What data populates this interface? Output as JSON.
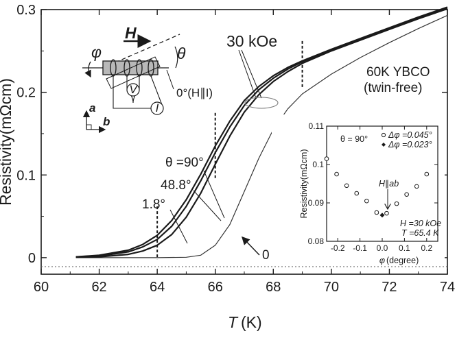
{
  "chart_data": [
    {
      "type": "line",
      "xlabel_symbol": "T",
      "xlabel_unit": "(K)",
      "ylabel": "Resistivity(mΩcm)",
      "xlim": [
        60,
        74
      ],
      "ylim": [
        -0.02,
        0.3
      ],
      "xticks": [
        "60",
        "62",
        "64",
        "66",
        "68",
        "70",
        "72",
        "74"
      ],
      "yticks": [
        "0",
        "0.1",
        "0.2",
        "0.3"
      ],
      "grid": false,
      "sample_label_1": "60K YBCO",
      "sample_label_2": "(twin-free)",
      "field_label_30": "30 kOe",
      "field_label_0": "0 kOe",
      "theta_label": "θ =90°",
      "angle_label_48": "48.8°",
      "angle_label_1": "1.8°",
      "dashed_markers_x": [
        64,
        66,
        69
      ],
      "series": [
        {
          "name": "0 kOe",
          "x": [
            61.2,
            62,
            63,
            64,
            65,
            65.5,
            66,
            66.5,
            67,
            67.5,
            68,
            68.5,
            69,
            70,
            71,
            72,
            73,
            74
          ],
          "y": [
            0,
            0,
            0,
            0,
            0.0005,
            0.003,
            0.015,
            0.04,
            0.08,
            0.12,
            0.155,
            0.18,
            0.198,
            0.222,
            0.242,
            0.26,
            0.277,
            0.293
          ]
        },
        {
          "name": "θ =90°",
          "x": [
            61.2,
            62,
            63,
            63.5,
            64,
            64.5,
            65,
            65.5,
            66,
            66.5,
            67,
            67.5,
            68,
            68.5,
            69,
            70,
            71,
            72,
            73,
            74
          ],
          "y": [
            0.001,
            0.003,
            0.009,
            0.016,
            0.027,
            0.045,
            0.07,
            0.101,
            0.135,
            0.165,
            0.19,
            0.207,
            0.22,
            0.23,
            0.238,
            0.252,
            0.265,
            0.278,
            0.291,
            0.303
          ]
        },
        {
          "name": "48.8°",
          "x": [
            61.2,
            62,
            63,
            63.5,
            64,
            64.5,
            65,
            65.5,
            66,
            66.5,
            67,
            67.5,
            68,
            68.5,
            69,
            70,
            71,
            72,
            73,
            74
          ],
          "y": [
            0.001,
            0.002,
            0.007,
            0.013,
            0.022,
            0.038,
            0.062,
            0.093,
            0.127,
            0.158,
            0.184,
            0.203,
            0.217,
            0.228,
            0.237,
            0.251,
            0.264,
            0.277,
            0.29,
            0.302
          ]
        },
        {
          "name": "1.8°",
          "x": [
            61.2,
            62,
            63,
            63.5,
            64,
            64.5,
            65,
            65.5,
            66,
            66.5,
            67,
            67.5,
            68,
            68.5,
            69,
            70,
            71,
            72,
            73,
            74
          ],
          "y": [
            0.0005,
            0.001,
            0.004,
            0.008,
            0.015,
            0.028,
            0.049,
            0.078,
            0.113,
            0.147,
            0.176,
            0.197,
            0.213,
            0.225,
            0.235,
            0.25,
            0.263,
            0.276,
            0.289,
            0.301
          ]
        }
      ]
    },
    {
      "type": "scatter",
      "xlabel_symbol": "φ",
      "xlabel_unit": "(degree)",
      "ylabel": "Resistivity(mΩcm)",
      "xlim": [
        -0.25,
        0.25
      ],
      "ylim": [
        0.08,
        0.11
      ],
      "xticks": [
        "-0.2",
        "-0.1",
        "0.0",
        "0.1",
        "0.2"
      ],
      "yticks": [
        "0.08",
        "0.09",
        "0.1",
        "0.11"
      ],
      "theta_note": "θ = 90°",
      "arrow_label": "H∥ab",
      "condition_H": "H =30 kOe",
      "condition_T": "T =65.4 K",
      "series": [
        {
          "name": "Δφ =0.045°",
          "marker": "open-circle",
          "x": [
            -0.25,
            -0.205,
            -0.16,
            -0.115,
            -0.07,
            -0.025,
            0.02,
            0.065,
            0.11,
            0.155,
            0.2
          ],
          "y": [
            0.1015,
            0.0975,
            0.0945,
            0.0925,
            0.0905,
            0.0875,
            0.0873,
            0.0898,
            0.0922,
            0.0943,
            0.0975
          ]
        },
        {
          "name": "Δφ =0.023°",
          "marker": "filled-diamond",
          "x": [
            0.0
          ],
          "y": [
            0.0868
          ]
        }
      ]
    }
  ],
  "schematic": {
    "field_label": "H",
    "theta_label": "θ",
    "phi_label": "φ",
    "voltage_label": "V",
    "current_label": "I",
    "zero_angle_label": "0°(H∥I)",
    "axis_a": "a",
    "axis_b": "b"
  }
}
